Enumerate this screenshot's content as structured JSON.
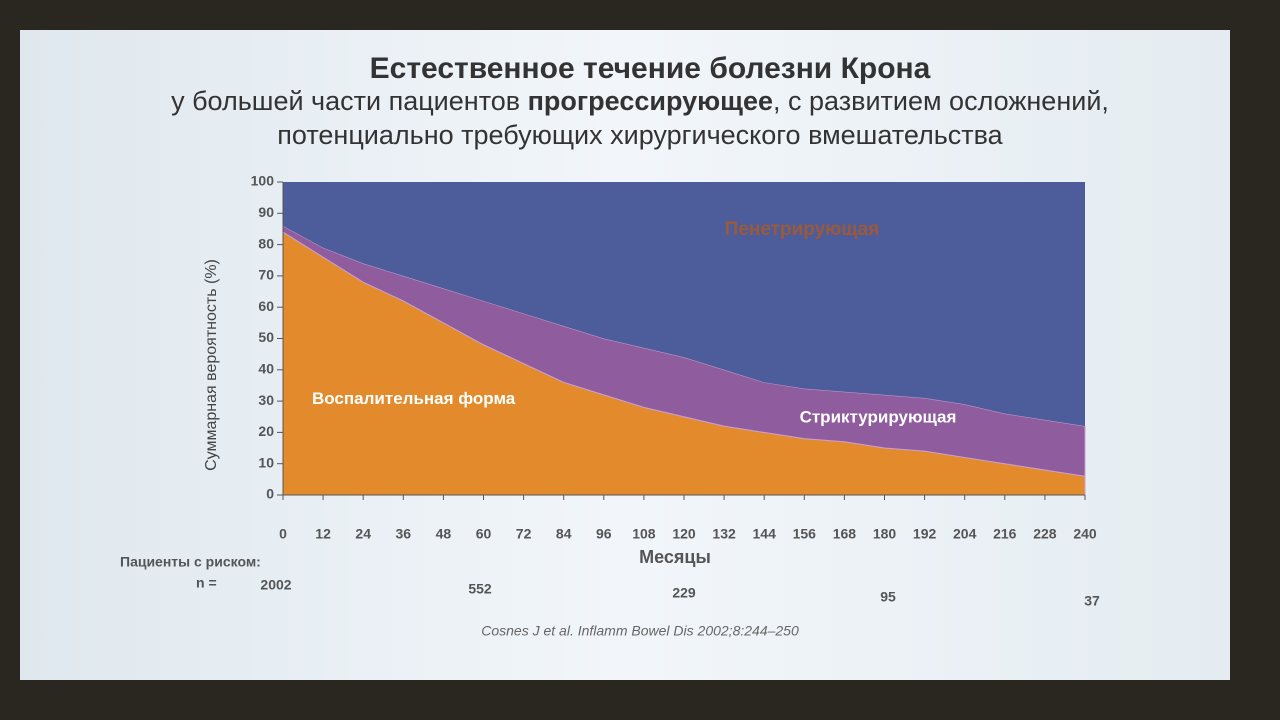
{
  "chart_data": {
    "type": "stacked_area",
    "title": "Естественное течение болезни Крона",
    "subtitle_parts": [
      "у большей части пациентов ",
      "прогрессирующее",
      ", с развитием осложнений, потенциально требующих хирургического вмешательства"
    ],
    "x_label": "Месяцы",
    "y_label": "Суммарная вероятность (%)",
    "x": [
      0,
      12,
      24,
      36,
      48,
      60,
      72,
      84,
      96,
      108,
      120,
      132,
      144,
      156,
      168,
      180,
      192,
      204,
      216,
      228,
      240
    ],
    "series": [
      {
        "name": "Воспалительная форма",
        "color": "#e38b2c",
        "values": [
          84,
          76,
          68,
          62,
          55,
          48,
          42,
          36,
          32,
          28,
          25,
          22,
          20,
          18,
          17,
          15,
          14,
          12,
          10,
          8,
          6
        ]
      },
      {
        "name": "Стриктурирующая",
        "color": "#8f5d9e",
        "values": [
          2,
          3,
          6,
          8,
          11,
          14,
          16,
          18,
          18,
          19,
          19,
          18,
          16,
          16,
          16,
          17,
          17,
          17,
          16,
          16,
          16
        ]
      },
      {
        "name": "Пенетрирующая",
        "color": "#4d5d9c",
        "values": [
          14,
          21,
          26,
          30,
          34,
          38,
          42,
          46,
          50,
          53,
          56,
          60,
          64,
          66,
          67,
          68,
          69,
          71,
          74,
          76,
          78
        ]
      }
    ],
    "xlim": [
      0,
      240
    ],
    "xticks": [
      0,
      12,
      24,
      36,
      48,
      60,
      72,
      84,
      96,
      108,
      120,
      132,
      144,
      156,
      168,
      180,
      192,
      204,
      216,
      228,
      240
    ],
    "ylim": [
      0,
      100
    ],
    "yticks": [
      0,
      10,
      20,
      30,
      40,
      50,
      60,
      70,
      80,
      90,
      100
    ],
    "at_risk": {
      "label": "Пациенты с риском:",
      "n_label": "n =",
      "values": [
        2002,
        552,
        229,
        95,
        37
      ]
    },
    "source": "Cosnes J et al. Inflamm Bowel Dis 2002;8:244–250"
  }
}
